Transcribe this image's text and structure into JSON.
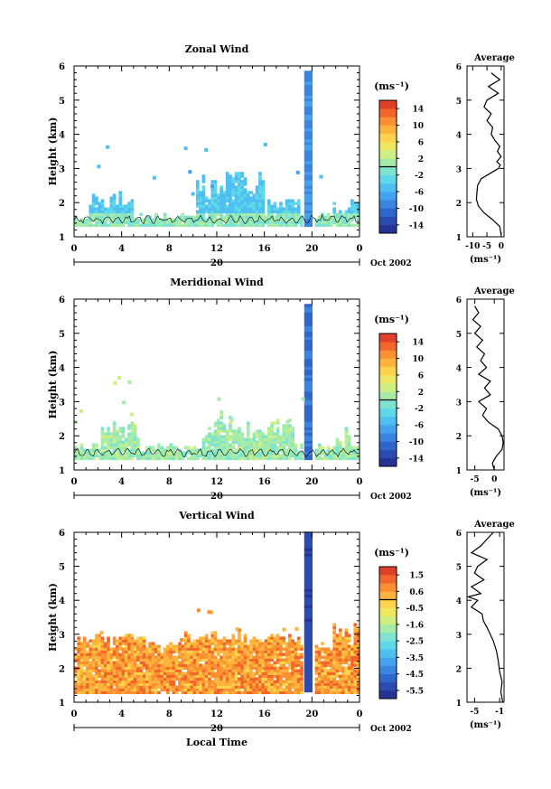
{
  "chart_data": [
    {
      "type": "heatmap",
      "title": "Zonal Wind",
      "ylabel": "Height (km)",
      "ylim": [
        1,
        6
      ],
      "y_ticks": [
        "1",
        "2",
        "3",
        "4",
        "5",
        "6"
      ],
      "x_ticks": [
        "0",
        "4",
        "8",
        "12",
        "16",
        "20",
        "0"
      ],
      "date_day": "20",
      "date_label": "Oct 2002",
      "colorbar": {
        "unit": "(ms⁻¹)",
        "range": [
          -16,
          16
        ],
        "tick_labels": [
          "14",
          "10",
          "6",
          "2",
          "-2",
          "-6",
          "-10",
          "-14"
        ],
        "colors": [
          "#253494",
          "#2c4bb1",
          "#2f66cc",
          "#3b85e0",
          "#44a2ef",
          "#4fbff2",
          "#5fd8e8",
          "#7fe4cf",
          "#a6eca8",
          "#cdef84",
          "#eee75f",
          "#fcd34a",
          "#fdb33c",
          "#fb8f32",
          "#f2652b",
          "#e0402a"
        ]
      },
      "average_profile": {
        "title": "Average",
        "xlabel": "(ms⁻¹)",
        "x_ticks": [
          "-10",
          "-5",
          "0"
        ],
        "xlim": [
          -12,
          1
        ],
        "x_tick_values": [
          -10,
          -5,
          0
        ],
        "height": [
          1.05,
          1.3,
          1.5,
          1.7,
          1.9,
          2.1,
          2.3,
          2.5,
          2.7,
          2.9,
          3.0,
          3.1,
          3.2,
          3.35,
          3.5,
          3.65,
          3.8,
          4.0,
          4.2,
          4.4,
          4.6,
          4.8,
          5.0,
          5.2,
          5.4,
          5.6,
          5.8
        ],
        "value": [
          0.0,
          -0.5,
          -3.0,
          -6.0,
          -8.0,
          -8.7,
          -8.5,
          -8.3,
          -7.0,
          -3.0,
          -1.0,
          -0.3,
          -1.5,
          0.0,
          -1.3,
          -0.5,
          -2.0,
          -3.5,
          -3.0,
          -5.0,
          -3.5,
          -6.0,
          -5.0,
          -1.0,
          -4.5,
          -0.5,
          -3.5
        ]
      }
    },
    {
      "type": "heatmap",
      "title": "Meridional Wind",
      "ylabel": "Height (km)",
      "ylim": [
        1,
        6
      ],
      "y_ticks": [
        "1",
        "2",
        "3",
        "4",
        "5",
        "6"
      ],
      "x_ticks": [
        "0",
        "4",
        "8",
        "12",
        "16",
        "20",
        "0"
      ],
      "date_day": "20",
      "date_label": "Oct 2002",
      "colorbar": {
        "unit": "(ms⁻¹)",
        "range": [
          -16,
          16
        ],
        "tick_labels": [
          "14",
          "10",
          "6",
          "2",
          "-2",
          "-6",
          "-10",
          "-14"
        ],
        "colors": [
          "#253494",
          "#2c4bb1",
          "#2f66cc",
          "#3b85e0",
          "#44a2ef",
          "#4fbff2",
          "#5fd8e8",
          "#7fe4cf",
          "#a6eca8",
          "#cdef84",
          "#eee75f",
          "#fcd34a",
          "#fdb33c",
          "#fb8f32",
          "#f2652b",
          "#e0402a"
        ]
      },
      "average_profile": {
        "title": "Average",
        "xlabel": "(ms⁻¹)",
        "x_ticks": [
          "-5",
          "0"
        ],
        "xlim": [
          -7,
          2.5
        ],
        "x_tick_values": [
          -5,
          0
        ],
        "height": [
          1.0,
          1.2,
          1.4,
          1.6,
          1.8,
          2.0,
          2.2,
          2.4,
          2.6,
          2.8,
          3.0,
          3.2,
          3.4,
          3.6,
          3.8,
          4.0,
          4.2,
          4.4,
          4.6,
          4.8,
          5.0,
          5.2,
          5.4,
          5.6,
          5.8
        ],
        "value": [
          0.0,
          -0.5,
          0.5,
          2.0,
          2.3,
          2.0,
          1.0,
          -1.5,
          -3.0,
          -2.0,
          -4.0,
          -1.0,
          -2.5,
          -1.0,
          -4.0,
          -2.0,
          -3.5,
          -2.5,
          -4.5,
          -3.0,
          -5.0,
          -3.5,
          -5.5,
          -4.0,
          -5.0
        ]
      }
    },
    {
      "type": "heatmap",
      "title": "Vertical Wind",
      "xlabel": "Local Time",
      "ylabel": "Height (km)",
      "ylim": [
        1,
        6
      ],
      "y_ticks": [
        "1",
        "2",
        "3",
        "4",
        "5",
        "6"
      ],
      "x_ticks": [
        "0",
        "4",
        "8",
        "12",
        "16",
        "20",
        "0"
      ],
      "date_day": "20",
      "date_label": "Oct 2002",
      "colorbar": {
        "unit": "(ms⁻¹)",
        "range": [
          -6,
          2
        ],
        "tick_labels": [
          "1.5",
          "0.6",
          "-0.5",
          "-1.6",
          "-2.5",
          "-3.5",
          "-4.5",
          "-5.5"
        ],
        "colors": [
          "#253494",
          "#2c4bb1",
          "#2f66cc",
          "#3b85e0",
          "#44a2ef",
          "#4fbff2",
          "#5fd8e8",
          "#7fe4cf",
          "#a6eca8",
          "#cdef84",
          "#eee75f",
          "#fcd34a",
          "#fdb33c",
          "#fb8f32",
          "#f2652b",
          "#e0402a"
        ]
      },
      "average_profile": {
        "title": "Average",
        "xlabel": "(ms⁻¹)",
        "x_ticks": [
          "-5",
          "-1"
        ],
        "xlim": [
          -6.2,
          -0.3
        ],
        "x_tick_values": [
          -5,
          -1
        ],
        "height": [
          1.0,
          1.3,
          1.6,
          1.9,
          2.2,
          2.5,
          2.8,
          3.0,
          3.2,
          3.4,
          3.6,
          3.8,
          4.0,
          4.1,
          4.2,
          4.4,
          4.6,
          4.8,
          5.0,
          5.2,
          5.4,
          5.6,
          5.8,
          6.0
        ],
        "value": [
          -0.5,
          -0.8,
          -0.6,
          -1.0,
          -1.2,
          -1.5,
          -2.0,
          -2.5,
          -3.0,
          -3.6,
          -3.8,
          -5.5,
          -4.5,
          -6.0,
          -4.0,
          -5.5,
          -3.5,
          -5.0,
          -4.5,
          -3.0,
          -5.5,
          -4.0,
          -3.0,
          -2.0
        ]
      }
    }
  ]
}
